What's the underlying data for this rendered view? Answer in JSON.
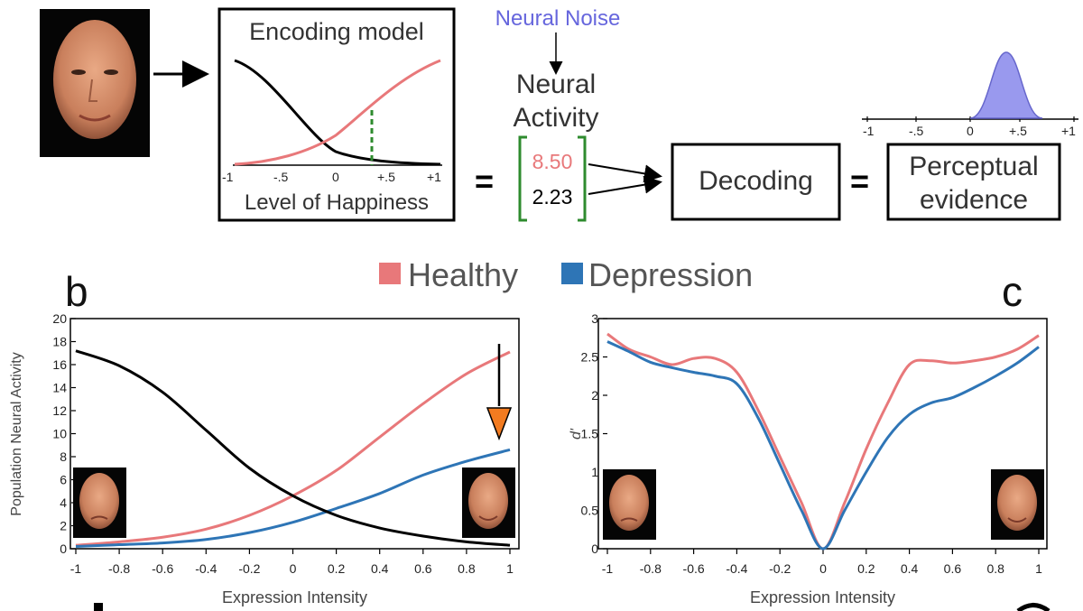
{
  "colors": {
    "healthy": "#e8787a",
    "depression": "#2e75b6",
    "neutral": "#000000",
    "noise": "#6666dd",
    "bracket": "#2e8b2e",
    "arrow": "#f27b20",
    "gaussian": "#9999ee"
  },
  "top": {
    "encoding_title": "Encoding model",
    "encoding_ticks": [
      "-1",
      "-.5",
      "0",
      "+.5",
      "+1"
    ],
    "encoding_xlabel": "Level of Happiness",
    "neural_noise": "Neural Noise",
    "neural_activity": [
      "Neural",
      "Activity"
    ],
    "value_red": "8.50",
    "value_black": "2.23",
    "equals": "=",
    "decoding": "Decoding",
    "perceptual": [
      "Perceptual",
      "evidence"
    ],
    "perc_ticks": [
      "-1",
      "-.5",
      "0",
      "+.5",
      "+1"
    ]
  },
  "legend": [
    {
      "name": "Healthy"
    },
    {
      "name": "Depression"
    }
  ],
  "panel_labels": {
    "b": "b",
    "c": "c",
    "d_partial": "d",
    "e_partial": "e"
  },
  "chart_data": [
    {
      "type": "line",
      "panel": "b",
      "ylabel": "Population Neural Activity",
      "xlabel": "Expression Intensity",
      "xlim": [
        -1,
        1
      ],
      "ylim": [
        0,
        20
      ],
      "xticks": [
        "-1",
        "-0.8",
        "-0.6",
        "-0.4",
        "-0.2",
        "0",
        "0.2",
        "0.4",
        "0.6",
        "0.8",
        "1"
      ],
      "yticks": [
        "0",
        "2",
        "4",
        "6",
        "8",
        "10",
        "12",
        "14",
        "16",
        "18",
        "20"
      ],
      "x": [
        -1,
        -0.8,
        -0.6,
        -0.4,
        -0.2,
        0,
        0.2,
        0.4,
        0.6,
        0.8,
        1
      ],
      "series": [
        {
          "name": "Healthy",
          "values": [
            0.3,
            0.6,
            1.0,
            1.7,
            2.9,
            4.6,
            6.8,
            9.7,
            12.6,
            15.2,
            17.1
          ]
        },
        {
          "name": "Depression",
          "values": [
            0.2,
            0.35,
            0.5,
            0.8,
            1.4,
            2.3,
            3.5,
            4.8,
            6.4,
            7.6,
            8.6
          ]
        },
        {
          "values": [
            17.2,
            15.9,
            13.6,
            10.3,
            7.0,
            4.6,
            2.9,
            1.8,
            1.1,
            0.6,
            0.3
          ]
        }
      ]
    },
    {
      "type": "line",
      "panel": "c",
      "ylabel": "d'",
      "xlabel": "Expression Intensity",
      "xlim": [
        -1,
        1
      ],
      "ylim": [
        0,
        3
      ],
      "xticks": [
        "-1",
        "-0.8",
        "-0.6",
        "-0.4",
        "-0.2",
        "0",
        "0.2",
        "0.4",
        "0.6",
        "0.8",
        "1"
      ],
      "yticks": [
        "0",
        "0.5",
        "1",
        "1.5",
        "2",
        "2.5",
        "3"
      ],
      "x": [
        -1,
        -0.9,
        -0.8,
        -0.7,
        -0.6,
        -0.5,
        -0.4,
        -0.3,
        -0.2,
        -0.1,
        0,
        0.1,
        0.2,
        0.3,
        0.4,
        0.5,
        0.6,
        0.7,
        0.8,
        0.9,
        1
      ],
      "series": [
        {
          "name": "Healthy",
          "values": [
            2.8,
            2.6,
            2.5,
            2.4,
            2.48,
            2.48,
            2.3,
            1.8,
            1.2,
            0.6,
            0.0,
            0.6,
            1.3,
            1.9,
            2.4,
            2.45,
            2.42,
            2.45,
            2.5,
            2.6,
            2.78
          ]
        },
        {
          "name": "Depression",
          "values": [
            2.7,
            2.57,
            2.43,
            2.36,
            2.3,
            2.25,
            2.15,
            1.7,
            1.1,
            0.5,
            0.0,
            0.5,
            1.0,
            1.45,
            1.75,
            1.9,
            1.97,
            2.1,
            2.25,
            2.42,
            2.63
          ]
        }
      ]
    }
  ]
}
